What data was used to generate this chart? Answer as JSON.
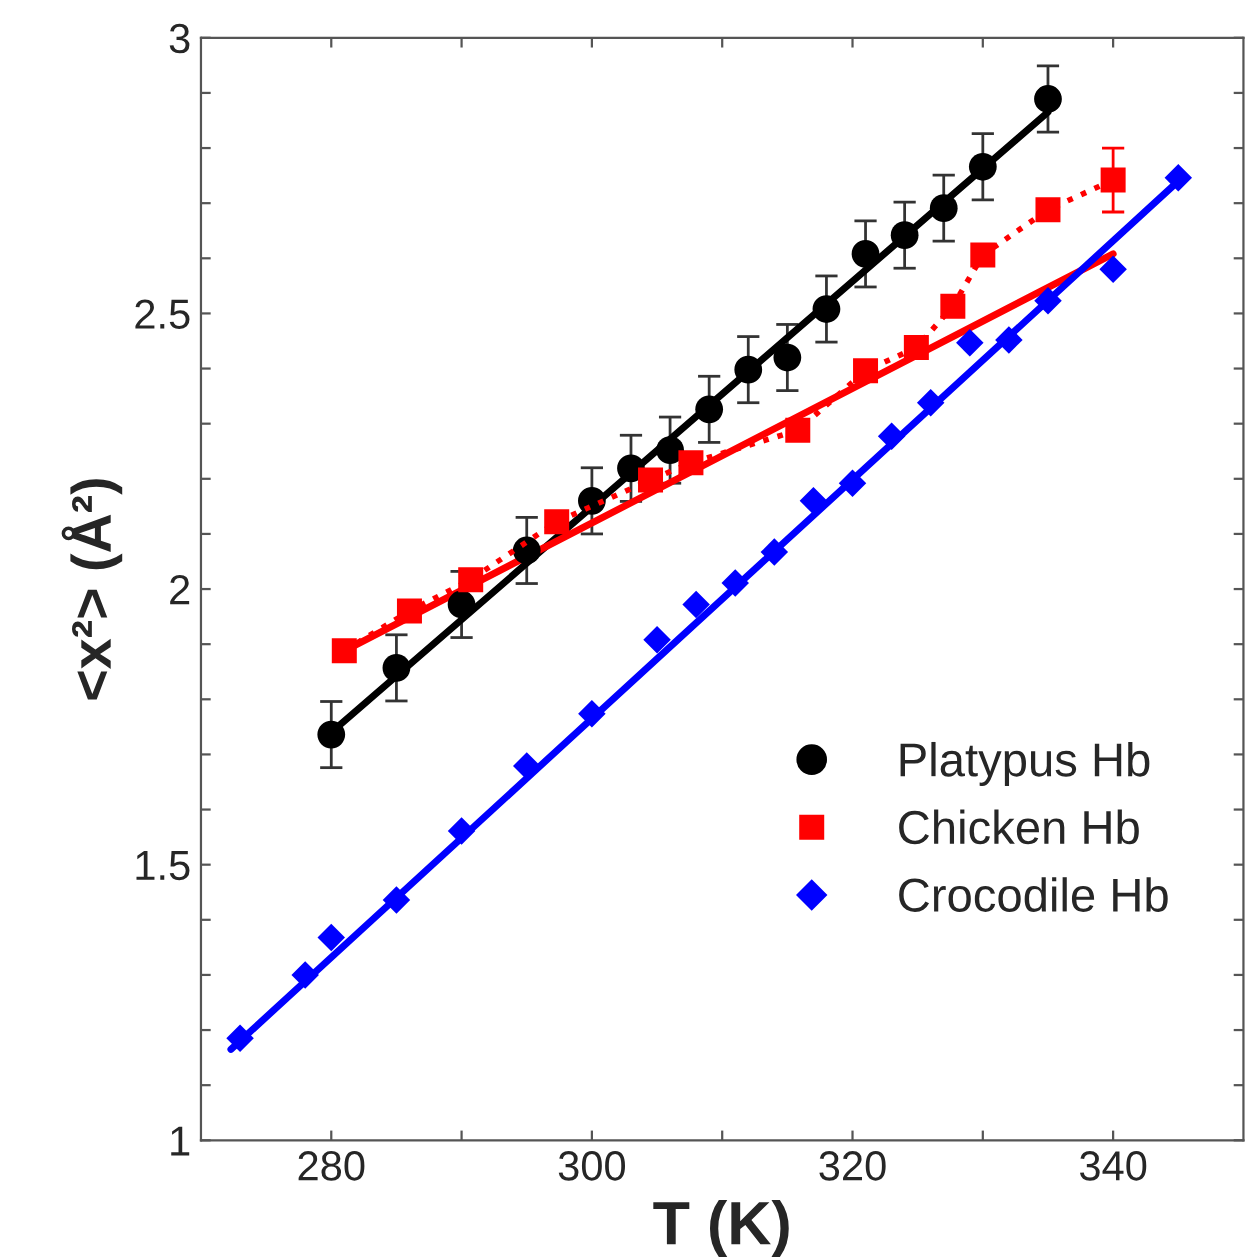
{
  "chart_data": {
    "type": "scatter",
    "xlabel": "T (K)",
    "ylabel": "<x²> (Å²)",
    "xlim": [
      270,
      350
    ],
    "ylim": [
      1,
      3
    ],
    "xticks": [
      280,
      {
        "value": 290,
        "label": null
      },
      300,
      {
        "value": 310,
        "label": null
      },
      320,
      {
        "value": 330,
        "label": null
      },
      340
    ],
    "yticks": [
      1,
      {
        "value": 1.1,
        "label": null
      },
      {
        "value": 1.2,
        "label": null
      },
      {
        "value": 1.3,
        "label": null
      },
      {
        "value": 1.4,
        "label": null
      },
      1.5,
      {
        "value": 1.6,
        "label": null
      },
      {
        "value": 1.7,
        "label": null
      },
      {
        "value": 1.8,
        "label": null
      },
      {
        "value": 1.9,
        "label": null
      },
      2,
      {
        "value": 2.1,
        "label": null
      },
      {
        "value": 2.2,
        "label": null
      },
      {
        "value": 2.3,
        "label": null
      },
      {
        "value": 2.4,
        "label": null
      },
      2.5,
      {
        "value": 2.6,
        "label": null
      },
      {
        "value": 2.7,
        "label": null
      },
      {
        "value": 2.8,
        "label": null
      },
      {
        "value": 2.9,
        "label": null
      },
      3
    ],
    "grid": false,
    "legend": "center right",
    "series": [
      {
        "name": "Platypus Hb",
        "marker": "circle",
        "color": "#000000",
        "x": [
          280,
          285,
          290,
          295,
          300,
          303,
          306,
          309,
          312,
          315,
          318,
          321,
          324,
          327,
          330,
          335
        ],
        "values": [
          1.736,
          1.857,
          1.972,
          2.07,
          2.16,
          2.219,
          2.252,
          2.326,
          2.398,
          2.42,
          2.508,
          2.608,
          2.642,
          2.691,
          2.766,
          2.889
        ],
        "errors": [
          0.06,
          0.06,
          0.06,
          0.06,
          0.06,
          0.06,
          0.06,
          0.06,
          0.06,
          0.06,
          0.06,
          0.06,
          0.06,
          0.06,
          0.06,
          0.06
        ]
      },
      {
        "name": "Chicken Hb",
        "type": "line",
        "marker": "square",
        "line_style": "dotted",
        "color": "#ff0000",
        "x": [
          281,
          286,
          290.7,
          297.3,
          304.5,
          307.6,
          315.8,
          321,
          324.9,
          327.7,
          330,
          335,
          340
        ],
        "values": [
          1.888,
          1.96,
          2.017,
          2.122,
          2.198,
          2.229,
          2.288,
          2.396,
          2.438,
          2.513,
          2.606,
          2.688,
          2.742
        ],
        "errors": [
          null,
          null,
          null,
          null,
          null,
          null,
          null,
          null,
          null,
          null,
          null,
          null,
          0.058
        ]
      },
      {
        "name": "Crocodile Hb",
        "marker": "diamond",
        "color": "#0000ff",
        "x": [
          273,
          278,
          280,
          285,
          290,
          295,
          300,
          305,
          308,
          311,
          314,
          317,
          320,
          323,
          326,
          329,
          332,
          335,
          340,
          345
        ],
        "values": [
          1.185,
          1.3,
          1.368,
          1.436,
          1.561,
          1.679,
          1.774,
          1.908,
          1.972,
          2.011,
          2.067,
          2.16,
          2.192,
          2.277,
          2.338,
          2.447,
          2.452,
          2.523,
          2.58,
          2.746
        ]
      },
      {
        "type": "line",
        "marker": "none",
        "line_style": "solid",
        "color": "#000000",
        "x": [
          280,
          335
        ],
        "values": [
          1.74,
          2.865
        ]
      },
      {
        "type": "line",
        "marker": "none",
        "line_style": "solid",
        "color": "#ff0000",
        "x": [
          281,
          340
        ],
        "values": [
          1.888,
          2.608
        ]
      },
      {
        "type": "line",
        "marker": "none",
        "line_style": "solid",
        "color": "#0000ff",
        "x": [
          272.3,
          345
        ],
        "values": [
          1.165,
          2.74
        ]
      }
    ]
  }
}
